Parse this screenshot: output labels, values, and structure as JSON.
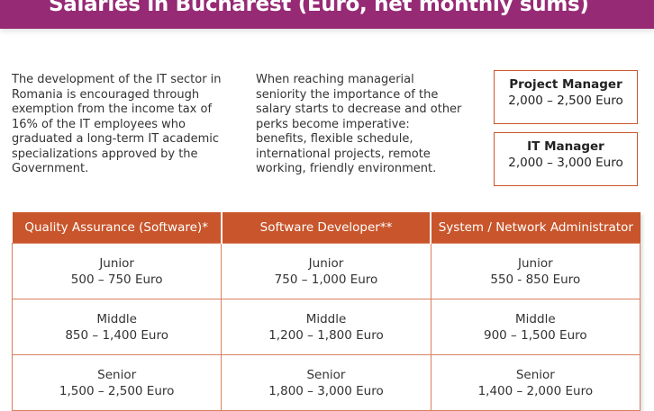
{
  "title": "Salaries in Bucharest (Euro, net monthly sums)",
  "colors": {
    "banner": "#962a74",
    "accent": "#c8552b"
  },
  "paragraphs": [
    "The development of the IT sector in\nRomania is encouraged through\nexemption from the income tax of\n16% of the IT employees who\ngraduated a long-term IT academic\nspecializations approved by the\nGovernment.",
    "When reaching managerial\nseniority the importance of the\nsalary starts to decrease and other\nperks become imperative:\nbenefits, flexible schedule,\ninternational projects, remote\nworking, friendly environment."
  ],
  "roles": [
    {
      "title": "Project Manager",
      "range": "2,000 – 2,500 Euro"
    },
    {
      "title": "IT Manager",
      "range": "2,000 – 3,000 Euro"
    }
  ],
  "table": {
    "headers": [
      "Quality Assurance (Software)*",
      "Software Developer**",
      "System / Network Administrator"
    ],
    "rows": [
      [
        {
          "level": "Junior",
          "range": "500 – 750 Euro"
        },
        {
          "level": "Junior",
          "range": "750 – 1,000 Euro"
        },
        {
          "level": "Junior",
          "range": "550 - 850 Euro"
        }
      ],
      [
        {
          "level": "Middle",
          "range": "850 – 1,400 Euro"
        },
        {
          "level": "Middle",
          "range": "1,200 – 1,800 Euro"
        },
        {
          "level": "Middle",
          "range": "900 – 1,500 Euro"
        }
      ],
      [
        {
          "level": "Senior",
          "range": "1,500 – 2,500 Euro"
        },
        {
          "level": "Senior",
          "range": "1,800 – 3,000 Euro"
        },
        {
          "level": "Senior",
          "range": "1,400 – 2,000 Euro"
        }
      ]
    ]
  }
}
